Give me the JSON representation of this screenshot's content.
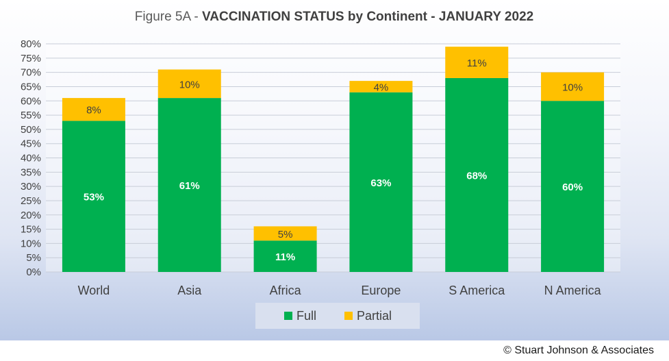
{
  "title_prefix": "Figure 5A - ",
  "title_main": "VACCINATION STATUS by Continent - JANUARY 2022",
  "credit": "© Stuart Johnson & Associates",
  "chart_data": {
    "type": "bar",
    "stacked": true,
    "categories": [
      "World",
      "Asia",
      "Africa",
      "Europe",
      "S America",
      "N America"
    ],
    "series": [
      {
        "name": "Full",
        "color": "#00b050",
        "values": [
          53,
          61,
          11,
          63,
          68,
          60
        ],
        "labels": [
          "53%",
          "61%",
          "11%",
          "63%",
          "68%",
          "60%"
        ]
      },
      {
        "name": "Partial",
        "color": "#ffc000",
        "values": [
          8,
          10,
          5,
          4,
          11,
          10
        ],
        "labels": [
          "8%",
          "10%",
          "5%",
          "4%",
          "11%",
          "10%"
        ]
      }
    ],
    "yticks": [
      "0%",
      "5%",
      "10%",
      "15%",
      "20%",
      "25%",
      "30%",
      "35%",
      "40%",
      "45%",
      "50%",
      "55%",
      "60%",
      "65%",
      "70%",
      "75%",
      "80%"
    ],
    "ylim": [
      0,
      80
    ],
    "ytick_step": 5,
    "grid": true,
    "legend_position": "bottom"
  }
}
